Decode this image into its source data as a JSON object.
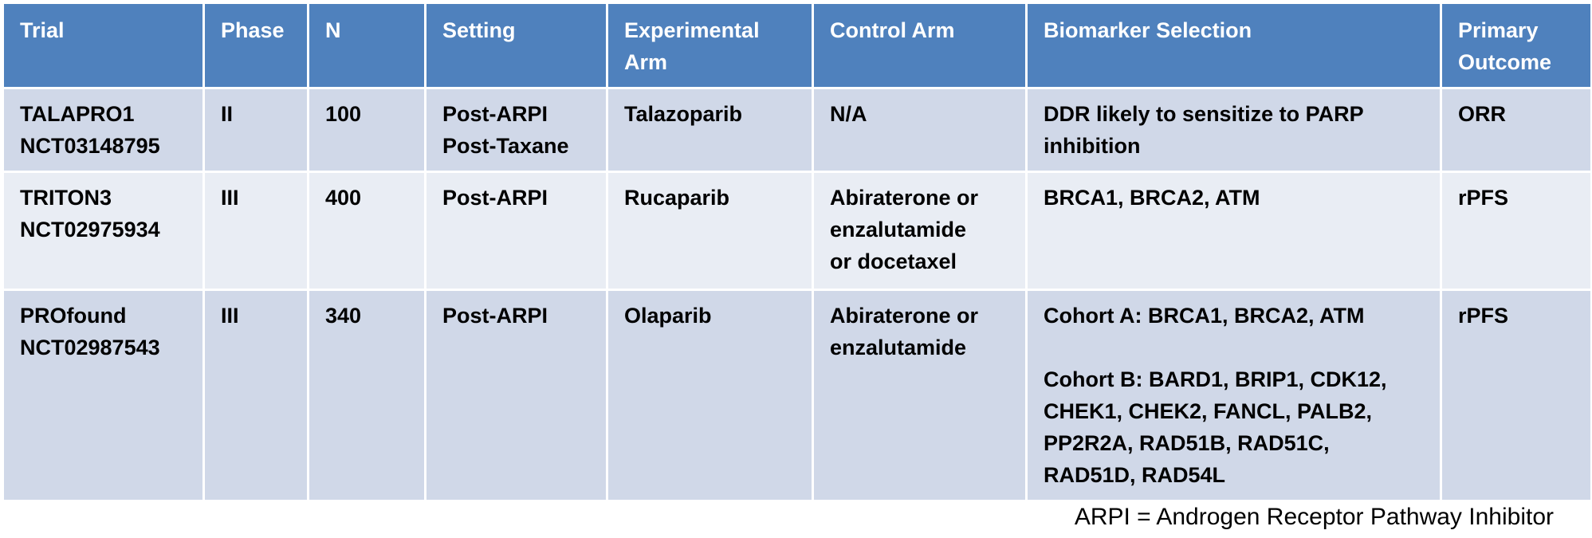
{
  "table": {
    "headers": [
      [
        "Trial"
      ],
      [
        "Phase"
      ],
      [
        "N"
      ],
      [
        "Setting"
      ],
      [
        "Experimental",
        "Arm"
      ],
      [
        "Control Arm"
      ],
      [
        "Biomarker Selection"
      ],
      [
        "Primary",
        "Outcome"
      ]
    ],
    "rows": [
      {
        "trial": [
          "TALAPRO1",
          "NCT03148795"
        ],
        "phase": "II",
        "n": "100",
        "setting": [
          "Post-ARPI",
          "Post-Taxane"
        ],
        "experimental_arm": "Talazoparib",
        "control_arm": [
          "N/A"
        ],
        "biomarker": [
          "DDR likely to sensitize to PARP",
          "inhibition"
        ],
        "outcome": "ORR"
      },
      {
        "trial": [
          "TRITON3",
          "NCT02975934"
        ],
        "phase": "III",
        "n": "400",
        "setting": [
          "Post-ARPI"
        ],
        "experimental_arm": "Rucaparib",
        "control_arm": [
          "Abiraterone or",
          "enzalutamide",
          "or docetaxel"
        ],
        "biomarker": [
          "BRCA1, BRCA2, ATM"
        ],
        "outcome": "rPFS"
      },
      {
        "trial": [
          "PROfound",
          "NCT02987543"
        ],
        "phase": "III",
        "n": "340",
        "setting": [
          "Post-ARPI"
        ],
        "experimental_arm": "Olaparib",
        "control_arm": [
          "Abiraterone or",
          "enzalutamide"
        ],
        "biomarker": [
          "Cohort A: BRCA1, BRCA2, ATM",
          "",
          "Cohort B: BARD1, BRIP1, CDK12,",
          "CHEK1, CHEK2, FANCL, PALB2,",
          "PP2R2A, RAD51B, RAD51C,",
          "RAD51D, RAD54L"
        ],
        "outcome": "rPFS"
      }
    ]
  },
  "footnote": "ARPI = Androgen Receptor Pathway Inhibitor",
  "colors": {
    "header_bg": "#4f81bd",
    "row_dark": "#d0d8e8",
    "row_light": "#e9edf4",
    "header_text": "#ffffff"
  }
}
